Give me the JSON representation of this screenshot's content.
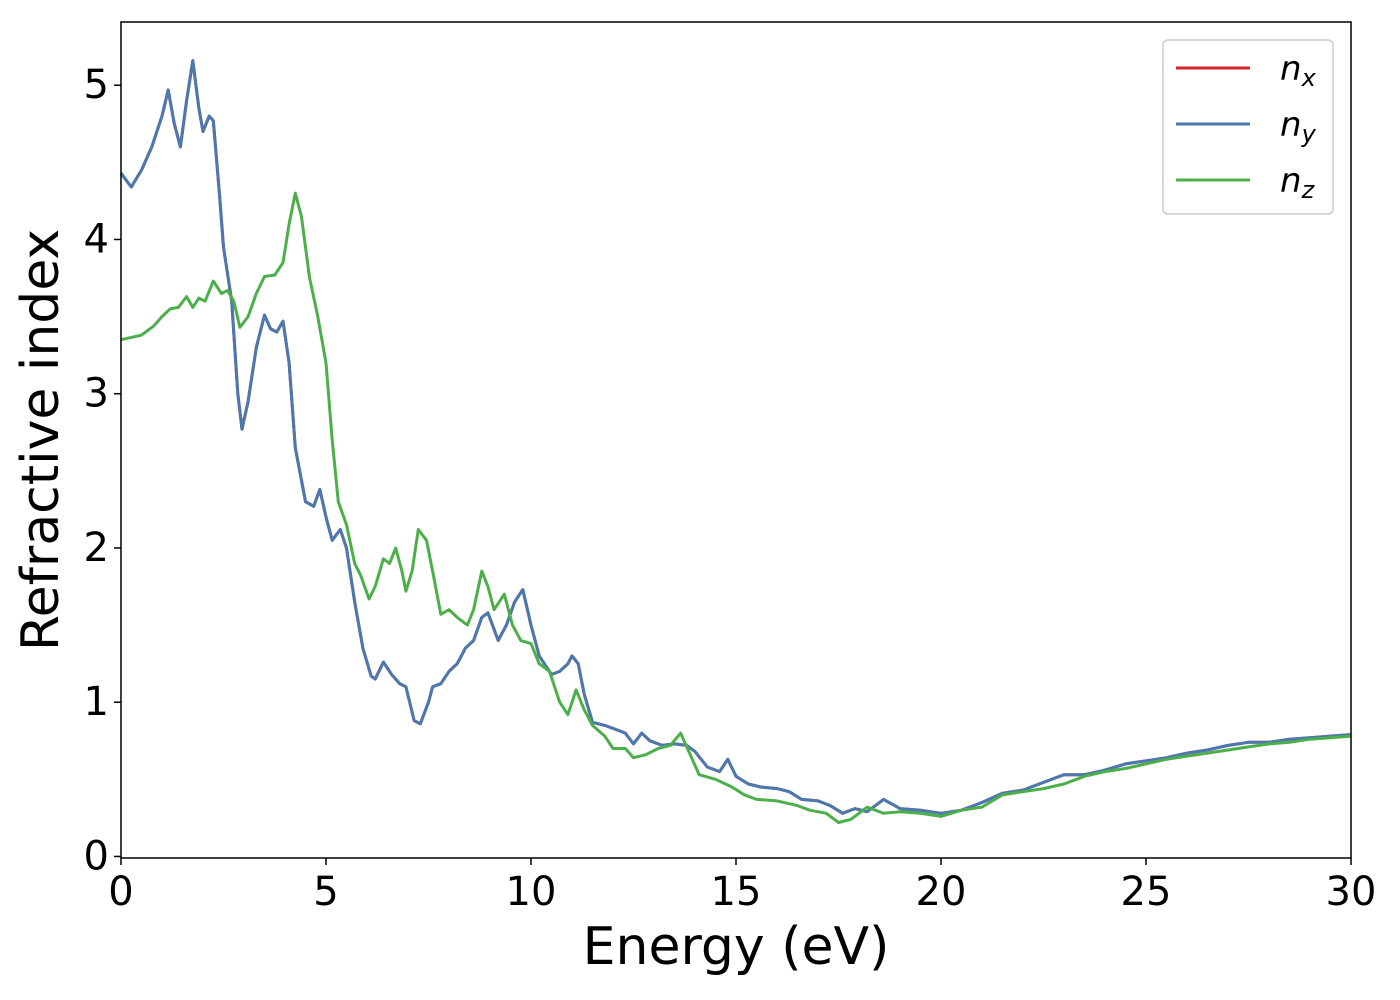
{
  "chart_data": {
    "type": "line",
    "x_label": "Energy (eV)",
    "y_label": "Refractive index",
    "xlim": [
      0,
      30
    ],
    "ylim": [
      -0.01,
      5.41
    ],
    "xticks": [
      0,
      5,
      10,
      15,
      20,
      25,
      30
    ],
    "yticks": [
      0,
      1,
      2,
      3,
      4,
      5
    ],
    "legend": "upper right",
    "series": [
      {
        "name": "n_x",
        "color": "#d62728",
        "x": [
          0,
          0.25,
          0.5,
          0.75,
          1.0,
          1.15,
          1.3,
          1.45,
          1.6,
          1.75,
          1.9,
          2.0,
          2.15,
          2.25,
          2.4,
          2.5,
          2.7,
          2.85,
          2.95,
          3.1,
          3.3,
          3.5,
          3.65,
          3.8,
          3.95,
          4.1,
          4.25,
          4.5,
          4.7,
          4.85,
          5.0,
          5.15,
          5.35,
          5.5,
          5.7,
          5.9,
          6.1,
          6.2,
          6.4,
          6.6,
          6.8,
          6.95,
          7.15,
          7.3,
          7.5,
          7.6,
          7.8,
          8.0,
          8.2,
          8.4,
          8.6,
          8.8,
          8.95,
          9.2,
          9.4,
          9.6,
          9.8,
          10.0,
          10.2,
          10.5,
          10.7,
          10.9,
          11.0,
          11.15,
          11.3,
          11.5,
          11.8,
          12.0,
          12.3,
          12.5,
          12.7,
          12.9,
          13.2,
          13.5,
          13.8,
          14.0,
          14.3,
          14.6,
          14.8,
          15.0,
          15.3,
          15.6,
          16.0,
          16.3,
          16.6,
          17.0,
          17.3,
          17.6,
          17.9,
          18.2,
          18.6,
          19.0,
          19.5,
          20.0,
          20.5,
          21.0,
          21.5,
          22.0,
          22.5,
          23.0,
          23.5,
          24.0,
          24.5,
          25.0,
          25.5,
          26.0,
          26.5,
          27.0,
          27.5,
          28.0,
          28.5,
          29.0,
          29.5,
          30.0
        ],
        "values": [
          4.43,
          4.34,
          4.45,
          4.6,
          4.8,
          4.97,
          4.75,
          4.6,
          4.9,
          5.16,
          4.85,
          4.7,
          4.8,
          4.77,
          4.3,
          3.95,
          3.6,
          3.0,
          2.77,
          2.95,
          3.3,
          3.51,
          3.42,
          3.4,
          3.47,
          3.2,
          2.65,
          2.3,
          2.27,
          2.38,
          2.2,
          2.05,
          2.12,
          2.0,
          1.65,
          1.35,
          1.17,
          1.15,
          1.26,
          1.18,
          1.12,
          1.1,
          0.88,
          0.86,
          1.0,
          1.1,
          1.12,
          1.2,
          1.25,
          1.35,
          1.4,
          1.55,
          1.58,
          1.4,
          1.5,
          1.65,
          1.73,
          1.5,
          1.3,
          1.18,
          1.2,
          1.25,
          1.3,
          1.25,
          1.05,
          0.87,
          0.85,
          0.83,
          0.8,
          0.73,
          0.8,
          0.75,
          0.72,
          0.73,
          0.72,
          0.68,
          0.58,
          0.55,
          0.63,
          0.52,
          0.47,
          0.45,
          0.44,
          0.42,
          0.37,
          0.36,
          0.33,
          0.28,
          0.31,
          0.29,
          0.37,
          0.31,
          0.3,
          0.28,
          0.3,
          0.35,
          0.41,
          0.43,
          0.48,
          0.53,
          0.53,
          0.56,
          0.6,
          0.62,
          0.64,
          0.67,
          0.69,
          0.72,
          0.74,
          0.74,
          0.76,
          0.77,
          0.78,
          0.79
        ]
      },
      {
        "name": "n_y",
        "color": "#4a79b0",
        "x": [
          0,
          0.25,
          0.5,
          0.75,
          1.0,
          1.15,
          1.3,
          1.45,
          1.6,
          1.75,
          1.9,
          2.0,
          2.15,
          2.25,
          2.4,
          2.5,
          2.7,
          2.85,
          2.95,
          3.1,
          3.3,
          3.5,
          3.65,
          3.8,
          3.95,
          4.1,
          4.25,
          4.5,
          4.7,
          4.85,
          5.0,
          5.15,
          5.35,
          5.5,
          5.7,
          5.9,
          6.1,
          6.2,
          6.4,
          6.6,
          6.8,
          6.95,
          7.15,
          7.3,
          7.5,
          7.6,
          7.8,
          8.0,
          8.2,
          8.4,
          8.6,
          8.8,
          8.95,
          9.2,
          9.4,
          9.6,
          9.8,
          10.0,
          10.2,
          10.5,
          10.7,
          10.9,
          11.0,
          11.15,
          11.3,
          11.5,
          11.8,
          12.0,
          12.3,
          12.5,
          12.7,
          12.9,
          13.2,
          13.5,
          13.8,
          14.0,
          14.3,
          14.6,
          14.8,
          15.0,
          15.3,
          15.6,
          16.0,
          16.3,
          16.6,
          17.0,
          17.3,
          17.6,
          17.9,
          18.2,
          18.6,
          19.0,
          19.5,
          20.0,
          20.5,
          21.0,
          21.5,
          22.0,
          22.5,
          23.0,
          23.5,
          24.0,
          24.5,
          25.0,
          25.5,
          26.0,
          26.5,
          27.0,
          27.5,
          28.0,
          28.5,
          29.0,
          29.5,
          30.0
        ],
        "values": [
          4.43,
          4.34,
          4.45,
          4.6,
          4.8,
          4.97,
          4.75,
          4.6,
          4.9,
          5.16,
          4.85,
          4.7,
          4.8,
          4.77,
          4.3,
          3.95,
          3.6,
          3.0,
          2.77,
          2.95,
          3.3,
          3.51,
          3.42,
          3.4,
          3.47,
          3.2,
          2.65,
          2.3,
          2.27,
          2.38,
          2.2,
          2.05,
          2.12,
          2.0,
          1.65,
          1.35,
          1.17,
          1.15,
          1.26,
          1.18,
          1.12,
          1.1,
          0.88,
          0.86,
          1.0,
          1.1,
          1.12,
          1.2,
          1.25,
          1.35,
          1.4,
          1.55,
          1.58,
          1.4,
          1.5,
          1.65,
          1.73,
          1.5,
          1.3,
          1.18,
          1.2,
          1.25,
          1.3,
          1.25,
          1.05,
          0.87,
          0.85,
          0.83,
          0.8,
          0.73,
          0.8,
          0.75,
          0.72,
          0.73,
          0.72,
          0.68,
          0.58,
          0.55,
          0.63,
          0.52,
          0.47,
          0.45,
          0.44,
          0.42,
          0.37,
          0.36,
          0.33,
          0.28,
          0.31,
          0.29,
          0.37,
          0.31,
          0.3,
          0.28,
          0.3,
          0.35,
          0.41,
          0.43,
          0.48,
          0.53,
          0.53,
          0.56,
          0.6,
          0.62,
          0.64,
          0.67,
          0.69,
          0.72,
          0.74,
          0.74,
          0.76,
          0.77,
          0.78,
          0.79
        ]
      },
      {
        "name": "n_z",
        "color": "#4daf4a",
        "x": [
          0,
          0.5,
          0.8,
          1.0,
          1.2,
          1.4,
          1.6,
          1.75,
          1.9,
          2.05,
          2.25,
          2.45,
          2.6,
          2.75,
          2.9,
          3.1,
          3.3,
          3.5,
          3.75,
          3.95,
          4.1,
          4.25,
          4.4,
          4.6,
          4.8,
          5.0,
          5.15,
          5.3,
          5.5,
          5.7,
          5.85,
          6.05,
          6.2,
          6.4,
          6.55,
          6.7,
          6.85,
          6.95,
          7.1,
          7.25,
          7.45,
          7.6,
          7.8,
          8.0,
          8.2,
          8.45,
          8.6,
          8.8,
          8.95,
          9.1,
          9.35,
          9.55,
          9.75,
          10.0,
          10.2,
          10.45,
          10.7,
          10.9,
          11.1,
          11.3,
          11.5,
          11.8,
          12.0,
          12.3,
          12.5,
          12.8,
          13.1,
          13.4,
          13.65,
          13.9,
          14.1,
          14.5,
          14.9,
          15.2,
          15.5,
          16.0,
          16.5,
          16.8,
          17.2,
          17.5,
          17.8,
          18.2,
          18.6,
          19.0,
          19.5,
          20.0,
          20.5,
          21.0,
          21.5,
          22.0,
          22.5,
          23.0,
          23.5,
          24.0,
          24.5,
          25.0,
          25.5,
          26.0,
          26.5,
          27.0,
          27.5,
          28.0,
          28.5,
          29.0,
          29.5,
          30.0
        ],
        "values": [
          3.35,
          3.38,
          3.44,
          3.5,
          3.55,
          3.56,
          3.63,
          3.56,
          3.62,
          3.6,
          3.73,
          3.65,
          3.67,
          3.6,
          3.43,
          3.5,
          3.65,
          3.76,
          3.77,
          3.85,
          4.1,
          4.3,
          4.15,
          3.75,
          3.5,
          3.2,
          2.7,
          2.3,
          2.15,
          1.9,
          1.82,
          1.67,
          1.75,
          1.93,
          1.9,
          2.0,
          1.85,
          1.72,
          1.85,
          2.12,
          2.05,
          1.85,
          1.57,
          1.6,
          1.55,
          1.5,
          1.6,
          1.85,
          1.75,
          1.6,
          1.7,
          1.5,
          1.4,
          1.38,
          1.25,
          1.2,
          1.0,
          0.92,
          1.08,
          0.95,
          0.85,
          0.78,
          0.7,
          0.7,
          0.64,
          0.66,
          0.7,
          0.72,
          0.8,
          0.65,
          0.53,
          0.5,
          0.45,
          0.4,
          0.37,
          0.36,
          0.33,
          0.3,
          0.28,
          0.22,
          0.24,
          0.32,
          0.28,
          0.29,
          0.28,
          0.26,
          0.3,
          0.32,
          0.4,
          0.42,
          0.44,
          0.47,
          0.52,
          0.55,
          0.57,
          0.6,
          0.63,
          0.65,
          0.67,
          0.69,
          0.71,
          0.73,
          0.74,
          0.76,
          0.77,
          0.78
        ]
      }
    ]
  }
}
